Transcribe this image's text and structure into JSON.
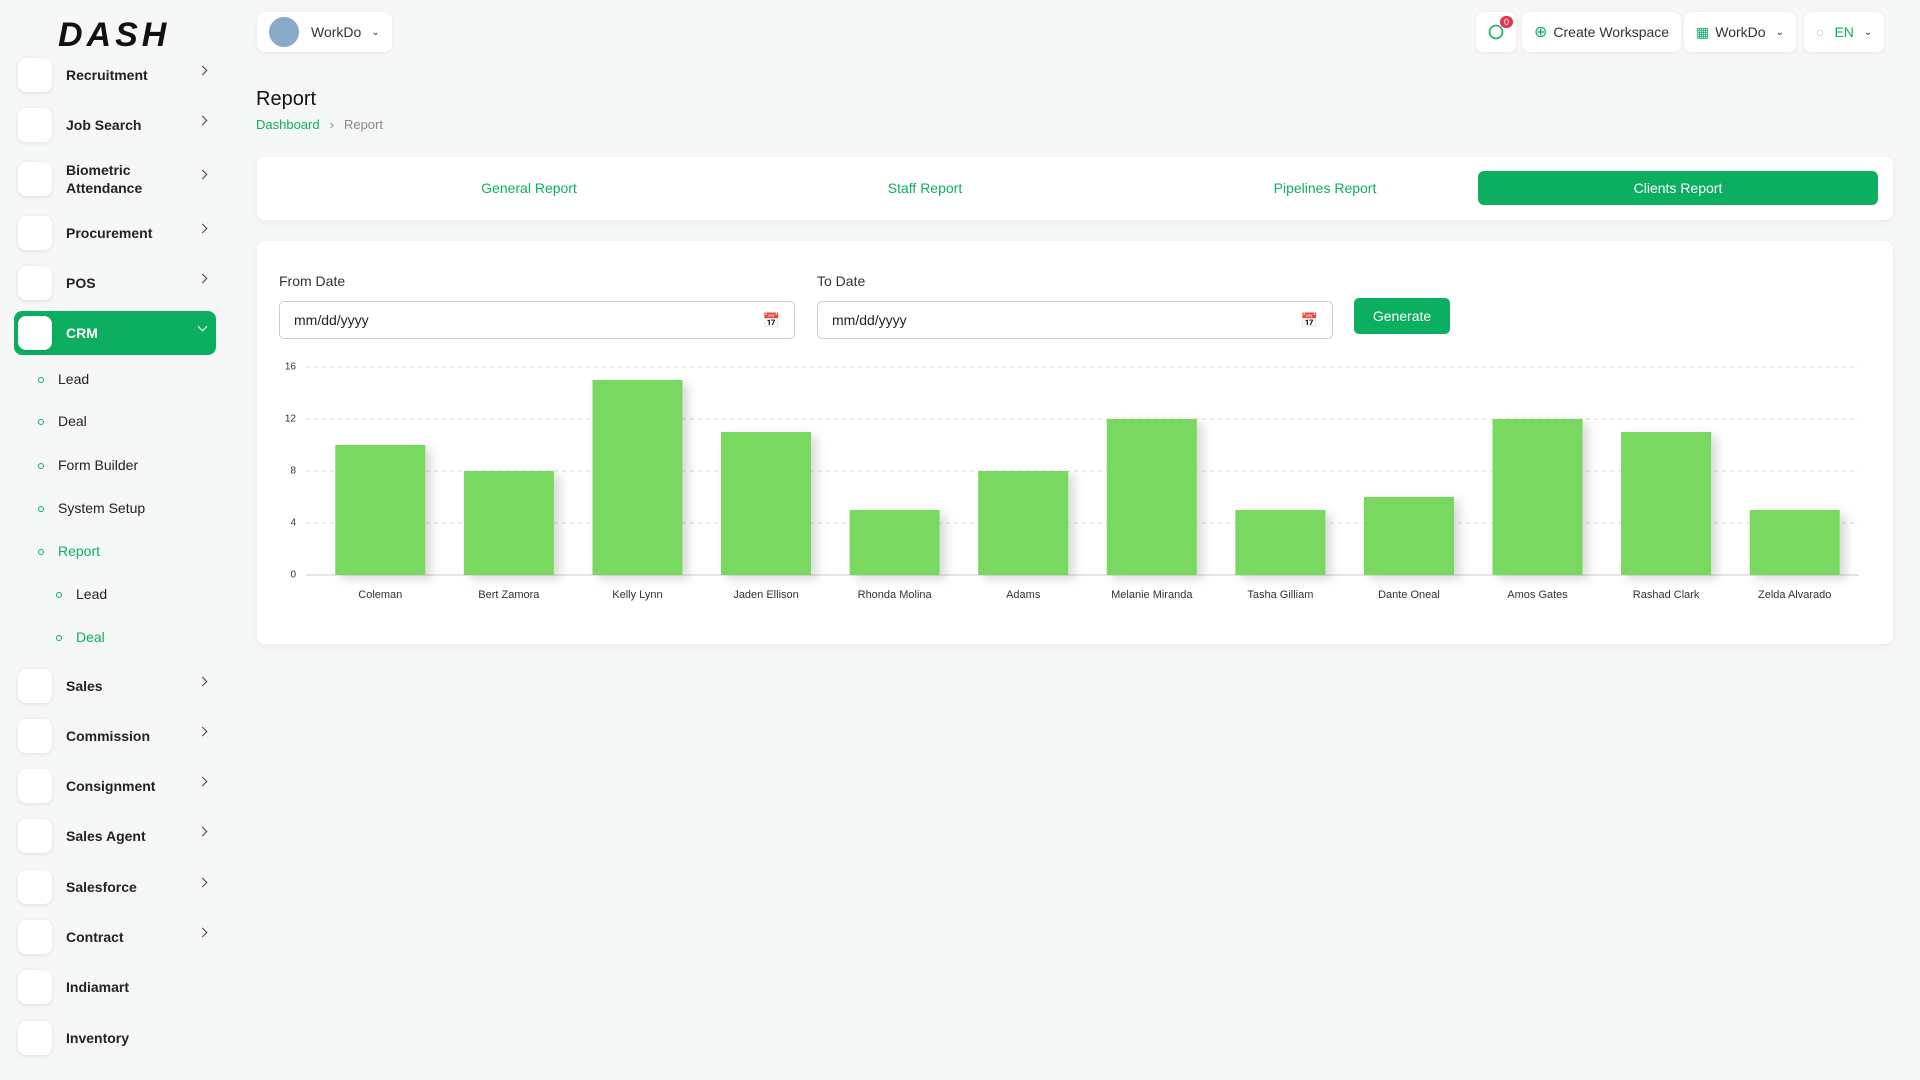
{
  "logo": "DASH",
  "header": {
    "workspace": "WorkDo",
    "notification_count": "0",
    "create_workspace": "Create Workspace",
    "workspace_menu": "WorkDo",
    "language": "EN"
  },
  "sidebar": {
    "items": [
      {
        "label": "Recruitment"
      },
      {
        "label": "Job Search"
      },
      {
        "label": "Biometric Attendance"
      },
      {
        "label": "Procurement"
      },
      {
        "label": "POS"
      },
      {
        "label": "CRM"
      },
      {
        "label": "Lead"
      },
      {
        "label": "Deal"
      },
      {
        "label": "Form Builder"
      },
      {
        "label": "System Setup"
      },
      {
        "label": "Report"
      },
      {
        "label": "Lead"
      },
      {
        "label": "Deal"
      },
      {
        "label": "Sales"
      },
      {
        "label": "Commission"
      },
      {
        "label": "Consignment"
      },
      {
        "label": "Sales Agent"
      },
      {
        "label": "Salesforce"
      },
      {
        "label": "Contract"
      },
      {
        "label": "Indiamart"
      },
      {
        "label": "Inventory"
      }
    ]
  },
  "page": {
    "title": "Report",
    "breadcrumb": [
      "Dashboard",
      "Report"
    ]
  },
  "tabs": [
    "General Report",
    "Staff Report",
    "Pipelines Report",
    "Clients Report"
  ],
  "form": {
    "from_label": "From Date",
    "from_placeholder": "mm/dd/yyyy",
    "to_label": "To Date",
    "to_placeholder": "mm/dd/yyyy",
    "button": "Generate"
  },
  "chart_data": {
    "type": "bar",
    "categories": [
      "Coleman",
      "Bert Zamora",
      "Kelly Lynn",
      "Jaden Ellison",
      "Rhonda Molina",
      "Adams",
      "Melanie Miranda",
      "Tasha Gilliam",
      "Dante Oneal",
      "Amos Gates",
      "Rashad Clark",
      "Zelda Alvarado"
    ],
    "values": [
      10,
      8,
      15,
      11,
      5,
      8,
      12,
      5,
      6,
      12,
      11,
      5
    ],
    "color": "#79d85e",
    "ylim": [
      0,
      16
    ],
    "yticks": [
      0,
      4,
      8,
      12,
      16
    ],
    "grid": true
  }
}
